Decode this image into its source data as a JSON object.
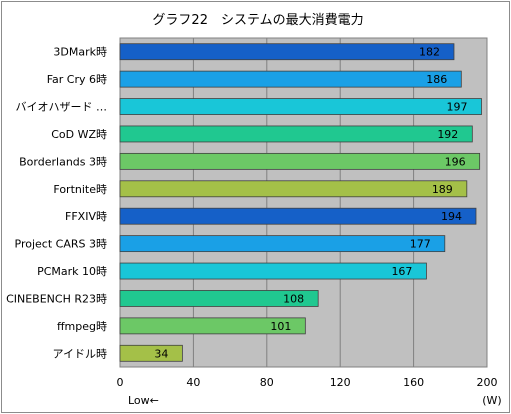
{
  "chart_data": {
    "type": "bar",
    "orientation": "horizontal",
    "title": "グラフ22　システムの最大消費電力",
    "categories": [
      "3DMark時",
      "Far Cry 6時",
      "バイオハザード …",
      "CoD WZ時",
      "Borderlands 3時",
      "Fortnite時",
      "FFXIV時",
      "Project CARS 3時",
      "PCMark 10時",
      "CINEBENCH R23時",
      "ffmpeg時",
      "アイドル時"
    ],
    "values": [
      182,
      186,
      197,
      192,
      196,
      189,
      194,
      177,
      167,
      108,
      101,
      34
    ],
    "bar_colors": [
      "#1560c8",
      "#1aa0e6",
      "#19c6d8",
      "#20c890",
      "#6cc866",
      "#a4c048",
      "#1560c8",
      "#1aa0e6",
      "#19c6d8",
      "#20c890",
      "#6cc866",
      "#a4c048"
    ],
    "xlim": [
      0,
      200
    ],
    "xticks": [
      0,
      40,
      80,
      120,
      160,
      200
    ],
    "x_unit": "(W)",
    "direction_note": "Low←",
    "grid": true,
    "plot_background": "#c0c0c0"
  }
}
